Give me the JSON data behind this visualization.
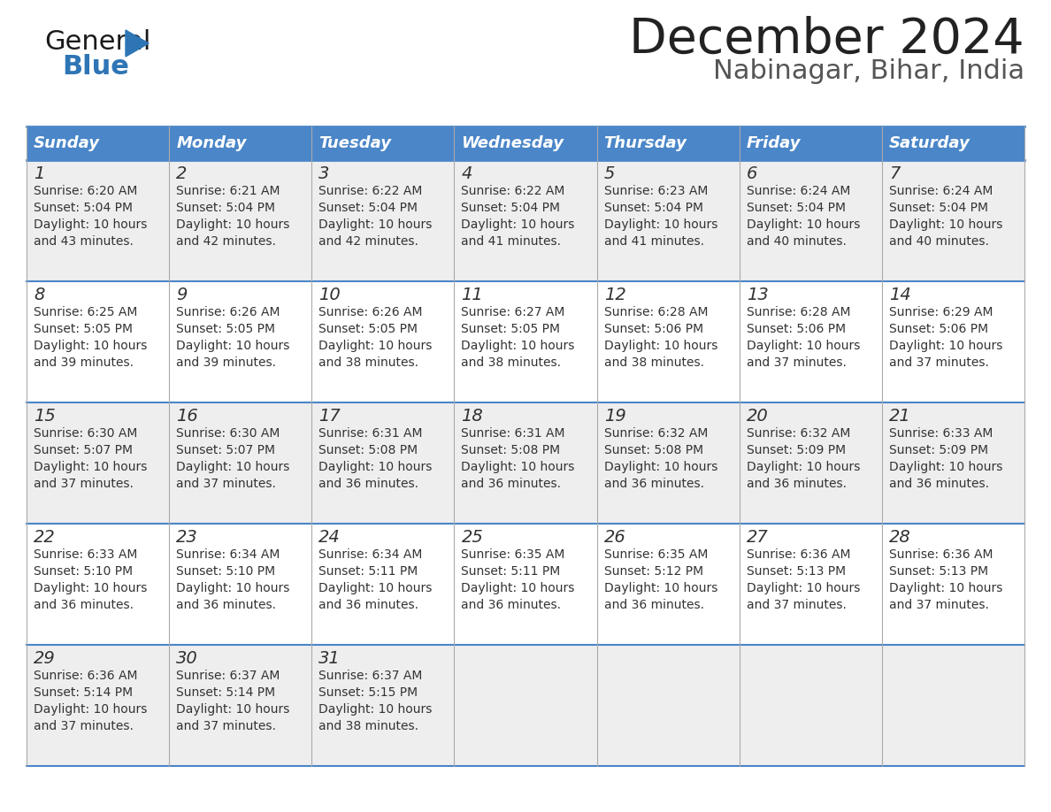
{
  "title": "December 2024",
  "subtitle": "Nabinagar, Bihar, India",
  "header_bg_color": "#4A86C8",
  "header_text_color": "#FFFFFF",
  "cell_bg_white": "#FFFFFF",
  "cell_bg_gray": "#EEEEEE",
  "border_color_dark": "#4A86C8",
  "border_color_light": "#AAAAAA",
  "title_color": "#222222",
  "subtitle_color": "#555555",
  "day_number_color": "#333333",
  "cell_text_color": "#333333",
  "days_of_week": [
    "Sunday",
    "Monday",
    "Tuesday",
    "Wednesday",
    "Thursday",
    "Friday",
    "Saturday"
  ],
  "calendar_data": [
    [
      {
        "day": 1,
        "sunrise": "6:20 AM",
        "sunset": "5:04 PM",
        "daylight_hours": 10,
        "daylight_minutes": 43
      },
      {
        "day": 2,
        "sunrise": "6:21 AM",
        "sunset": "5:04 PM",
        "daylight_hours": 10,
        "daylight_minutes": 42
      },
      {
        "day": 3,
        "sunrise": "6:22 AM",
        "sunset": "5:04 PM",
        "daylight_hours": 10,
        "daylight_minutes": 42
      },
      {
        "day": 4,
        "sunrise": "6:22 AM",
        "sunset": "5:04 PM",
        "daylight_hours": 10,
        "daylight_minutes": 41
      },
      {
        "day": 5,
        "sunrise": "6:23 AM",
        "sunset": "5:04 PM",
        "daylight_hours": 10,
        "daylight_minutes": 41
      },
      {
        "day": 6,
        "sunrise": "6:24 AM",
        "sunset": "5:04 PM",
        "daylight_hours": 10,
        "daylight_minutes": 40
      },
      {
        "day": 7,
        "sunrise": "6:24 AM",
        "sunset": "5:04 PM",
        "daylight_hours": 10,
        "daylight_minutes": 40
      }
    ],
    [
      {
        "day": 8,
        "sunrise": "6:25 AM",
        "sunset": "5:05 PM",
        "daylight_hours": 10,
        "daylight_minutes": 39
      },
      {
        "day": 9,
        "sunrise": "6:26 AM",
        "sunset": "5:05 PM",
        "daylight_hours": 10,
        "daylight_minutes": 39
      },
      {
        "day": 10,
        "sunrise": "6:26 AM",
        "sunset": "5:05 PM",
        "daylight_hours": 10,
        "daylight_minutes": 38
      },
      {
        "day": 11,
        "sunrise": "6:27 AM",
        "sunset": "5:05 PM",
        "daylight_hours": 10,
        "daylight_minutes": 38
      },
      {
        "day": 12,
        "sunrise": "6:28 AM",
        "sunset": "5:06 PM",
        "daylight_hours": 10,
        "daylight_minutes": 38
      },
      {
        "day": 13,
        "sunrise": "6:28 AM",
        "sunset": "5:06 PM",
        "daylight_hours": 10,
        "daylight_minutes": 37
      },
      {
        "day": 14,
        "sunrise": "6:29 AM",
        "sunset": "5:06 PM",
        "daylight_hours": 10,
        "daylight_minutes": 37
      }
    ],
    [
      {
        "day": 15,
        "sunrise": "6:30 AM",
        "sunset": "5:07 PM",
        "daylight_hours": 10,
        "daylight_minutes": 37
      },
      {
        "day": 16,
        "sunrise": "6:30 AM",
        "sunset": "5:07 PM",
        "daylight_hours": 10,
        "daylight_minutes": 37
      },
      {
        "day": 17,
        "sunrise": "6:31 AM",
        "sunset": "5:08 PM",
        "daylight_hours": 10,
        "daylight_minutes": 36
      },
      {
        "day": 18,
        "sunrise": "6:31 AM",
        "sunset": "5:08 PM",
        "daylight_hours": 10,
        "daylight_minutes": 36
      },
      {
        "day": 19,
        "sunrise": "6:32 AM",
        "sunset": "5:08 PM",
        "daylight_hours": 10,
        "daylight_minutes": 36
      },
      {
        "day": 20,
        "sunrise": "6:32 AM",
        "sunset": "5:09 PM",
        "daylight_hours": 10,
        "daylight_minutes": 36
      },
      {
        "day": 21,
        "sunrise": "6:33 AM",
        "sunset": "5:09 PM",
        "daylight_hours": 10,
        "daylight_minutes": 36
      }
    ],
    [
      {
        "day": 22,
        "sunrise": "6:33 AM",
        "sunset": "5:10 PM",
        "daylight_hours": 10,
        "daylight_minutes": 36
      },
      {
        "day": 23,
        "sunrise": "6:34 AM",
        "sunset": "5:10 PM",
        "daylight_hours": 10,
        "daylight_minutes": 36
      },
      {
        "day": 24,
        "sunrise": "6:34 AM",
        "sunset": "5:11 PM",
        "daylight_hours": 10,
        "daylight_minutes": 36
      },
      {
        "day": 25,
        "sunrise": "6:35 AM",
        "sunset": "5:11 PM",
        "daylight_hours": 10,
        "daylight_minutes": 36
      },
      {
        "day": 26,
        "sunrise": "6:35 AM",
        "sunset": "5:12 PM",
        "daylight_hours": 10,
        "daylight_minutes": 36
      },
      {
        "day": 27,
        "sunrise": "6:36 AM",
        "sunset": "5:13 PM",
        "daylight_hours": 10,
        "daylight_minutes": 37
      },
      {
        "day": 28,
        "sunrise": "6:36 AM",
        "sunset": "5:13 PM",
        "daylight_hours": 10,
        "daylight_minutes": 37
      }
    ],
    [
      {
        "day": 29,
        "sunrise": "6:36 AM",
        "sunset": "5:14 PM",
        "daylight_hours": 10,
        "daylight_minutes": 37
      },
      {
        "day": 30,
        "sunrise": "6:37 AM",
        "sunset": "5:14 PM",
        "daylight_hours": 10,
        "daylight_minutes": 37
      },
      {
        "day": 31,
        "sunrise": "6:37 AM",
        "sunset": "5:15 PM",
        "daylight_hours": 10,
        "daylight_minutes": 38
      },
      null,
      null,
      null,
      null
    ]
  ]
}
